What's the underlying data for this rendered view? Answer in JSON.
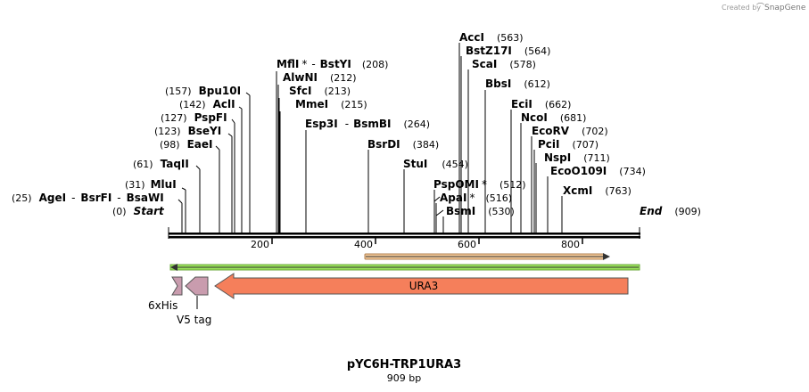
{
  "credit": {
    "prefix": "Created by",
    "brand": "SnapGene"
  },
  "map": {
    "name": "pYC6H-TRP1URA3",
    "length_label": "909 bp",
    "length_bp": 909,
    "scale_ticks": [
      "200",
      "400",
      "600",
      "800"
    ],
    "start_label": "Start",
    "start_pos": "(0)",
    "end_label": "End",
    "end_pos": "(909)"
  },
  "sites": {
    "ageI": {
      "name": "AgeI",
      "pos": "(25)"
    },
    "bsrFI": {
      "name": "BsrFI"
    },
    "bsaWI": {
      "name": "BsaWI"
    },
    "mluI": {
      "name": "MluI",
      "pos": "(31)"
    },
    "taqII": {
      "name": "TaqII",
      "pos": "(61)"
    },
    "eaeI": {
      "name": "EaeI",
      "pos": "(98)"
    },
    "bseYI": {
      "name": "BseYI",
      "pos": "(123)"
    },
    "pspFI": {
      "name": "PspFI",
      "pos": "(127)"
    },
    "aclI": {
      "name": "AclI",
      "pos": "(142)"
    },
    "bpu10I": {
      "name": "Bpu10I",
      "pos": "(157)"
    },
    "mflI": {
      "name": "MflI",
      "star": "*"
    },
    "bstYI": {
      "name": "BstYI",
      "pos": "(208)"
    },
    "alwNI": {
      "name": "AlwNI",
      "pos": "(212)"
    },
    "sfcI": {
      "name": "SfcI",
      "pos": "(213)"
    },
    "mmeI": {
      "name": "MmeI",
      "pos": "(215)"
    },
    "esp3I": {
      "name": "Esp3I"
    },
    "bsmBI": {
      "name": "BsmBI",
      "pos": "(264)"
    },
    "bsrDI": {
      "name": "BsrDI",
      "pos": "(384)"
    },
    "stuI": {
      "name": "StuI",
      "pos": "(454)"
    },
    "pspOMI": {
      "name": "PspOMI",
      "star": "*",
      "pos": "(512)"
    },
    "apaI": {
      "name": "ApaI",
      "star": "*",
      "pos": "(516)"
    },
    "bsmI": {
      "name": "BsmI",
      "pos": "(530)"
    },
    "accI": {
      "name": "AccI",
      "pos": "(563)"
    },
    "bstZ17I": {
      "name": "BstZ17I",
      "pos": "(564)"
    },
    "scaI": {
      "name": "ScaI",
      "pos": "(578)"
    },
    "bbsI": {
      "name": "BbsI",
      "pos": "(612)"
    },
    "eciI": {
      "name": "EciI",
      "pos": "(662)"
    },
    "ncoI": {
      "name": "NcoI",
      "pos": "(681)"
    },
    "ecoRV": {
      "name": "EcoRV",
      "pos": "(702)"
    },
    "pciI": {
      "name": "PciI",
      "pos": "(707)"
    },
    "nspI": {
      "name": "NspI",
      "pos": "(711)"
    },
    "ecoO109I": {
      "name": "EcoO109I",
      "pos": "(734)"
    },
    "xcmI": {
      "name": "XcmI",
      "pos": "(763)"
    }
  },
  "features": {
    "ura3": {
      "label": "URA3",
      "color": "#f57f5b"
    },
    "his6": {
      "label": "6xHis",
      "color": "#c99cae"
    },
    "v5": {
      "label": "V5 tag",
      "color": "#c99cae"
    },
    "orf_color": "#f3c998",
    "green_color": "#9be35b"
  }
}
